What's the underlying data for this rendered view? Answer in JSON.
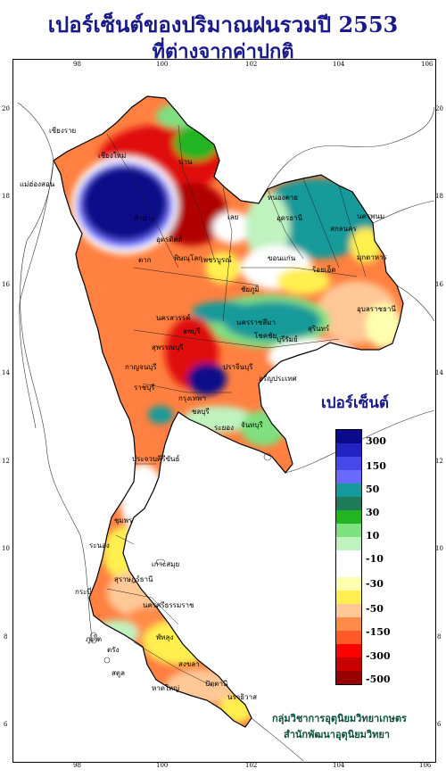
{
  "title": {
    "line1": "เปอร์เซ็นต์ของปริมาณฝนรวมปี 2553",
    "line2": "ที่ต่างจากค่าปกติ"
  },
  "axes": {
    "lon_ticks": [
      "98",
      "100",
      "102",
      "104",
      "106"
    ],
    "lat_ticks": [
      "20",
      "18",
      "16",
      "14",
      "12",
      "10",
      "8",
      "6"
    ]
  },
  "legend": {
    "title": "เปอร์เซ็นต์",
    "bins": [
      {
        "color": "#0a0a8a"
      },
      {
        "color": "#2323c4"
      },
      {
        "color": "#4848e8"
      },
      {
        "color": "#6a6aff"
      },
      {
        "color": "#139a9a"
      },
      {
        "color": "#1f7a5a"
      },
      {
        "color": "#22b422"
      },
      {
        "color": "#7fe07f"
      },
      {
        "color": "#bff2bf"
      },
      {
        "color": "#ffffff"
      },
      {
        "color": "#ffffff"
      },
      {
        "color": "#ffffb0"
      },
      {
        "color": "#ffef50"
      },
      {
        "color": "#ffc896"
      },
      {
        "color": "#ff8c4a"
      },
      {
        "color": "#ff5a28"
      },
      {
        "color": "#ff0000"
      },
      {
        "color": "#c80000"
      },
      {
        "color": "#960000"
      }
    ],
    "labels": [
      "300",
      "150",
      "50",
      "30",
      "10",
      "-10",
      "-30",
      "-50",
      "-150",
      "-300",
      "-500"
    ]
  },
  "places": [
    "เชียงราย",
    "เชียงใหม่",
    "แม่ฮ่องสอน",
    "น่าน",
    "ลำปาง",
    "อุตรดิตถ์",
    "หนองคาย",
    "อุดรธานี",
    "สกลนคร",
    "นครพนม",
    "มุกดาหาร",
    "ขอนแก่น",
    "ร้อยเอ็ด",
    "อุบลราชธานี",
    "เลย",
    "พิษณุโลก",
    "ตาก",
    "เพชรบูรณ์",
    "นครสวรรค์",
    "ชัยภูมิ",
    "ลพบุรี",
    "นครราชสีมา",
    "โชคชัย",
    "สุรินทร์",
    "บุรีรัมย์",
    "กาญจนบุรี",
    "สุพรรณบุรี",
    "ราชบุรี",
    "กรุงเทพฯ",
    "ปราจีนบุรี",
    "อรัญประเทศ",
    "ชลบุรี",
    "ระยอง",
    "จันทบุรี",
    "ประจวบคีรีขันธ์",
    "ชุมพร",
    "ระนอง",
    "สุราษฎร์ธานี",
    "นครศรีธรรมราช",
    "ภูเก็ต",
    "กระบี่",
    "ตรัง",
    "พัทลุง",
    "สงขลา",
    "หาดใหญ่",
    "ปัตตานี",
    "นราธิวาส",
    "สตูล",
    "เกาะสมุย"
  ],
  "credit": {
    "line1": "กลุ่มวิชาการอุตุนิยมวิทยาเกษตร",
    "line2": "สำนักพัฒนาอุตุนิยมวิทยา"
  }
}
